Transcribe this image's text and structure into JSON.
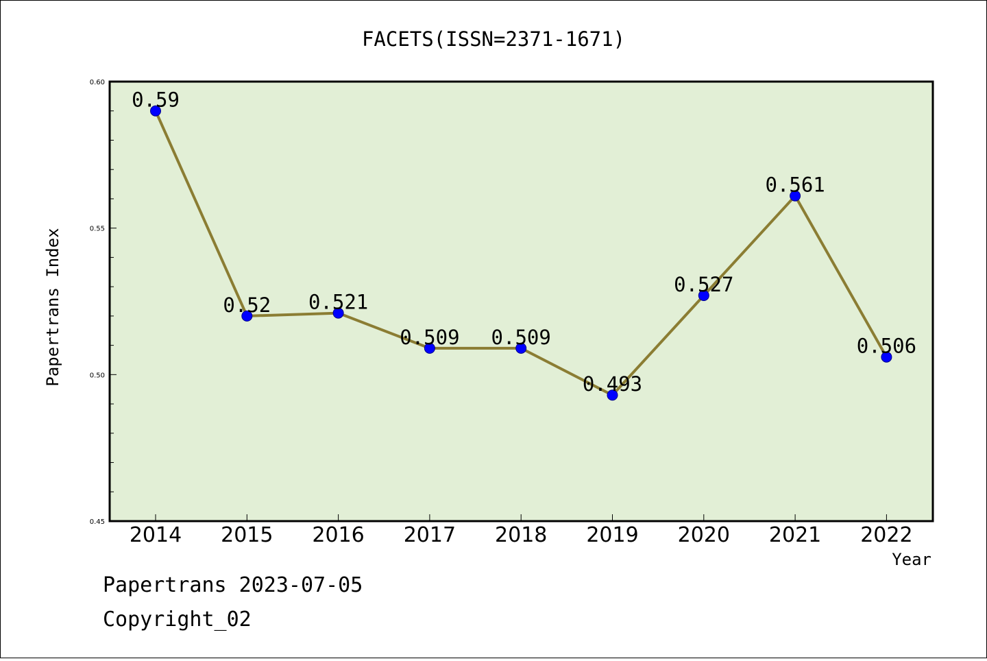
{
  "chart_data": {
    "type": "line",
    "title": "FACETS(ISSN=2371-1671)",
    "xlabel": "Year",
    "ylabel": "Papertrans Index",
    "categories": [
      "2014",
      "2015",
      "2016",
      "2017",
      "2018",
      "2019",
      "2020",
      "2021",
      "2022"
    ],
    "series": [
      {
        "values": [
          0.59,
          0.52,
          0.521,
          0.509,
          0.509,
          0.493,
          0.527,
          0.561,
          0.506
        ]
      }
    ],
    "data_labels": [
      "0.59",
      "0.52",
      "0.521",
      "0.509",
      "0.509",
      "0.493",
      "0.527",
      "0.561",
      "0.506"
    ],
    "ylim": [
      0.45,
      0.6
    ],
    "yticks": [
      "0.45",
      "0.50",
      "0.55",
      "0.60"
    ],
    "plot_background": "#e2efd6",
    "line_color": "#8b7d33",
    "marker_color": "#0000ff",
    "grid": false
  },
  "footer": {
    "line1": "Papertrans 2023-07-05",
    "line2": "Copyright_02"
  }
}
